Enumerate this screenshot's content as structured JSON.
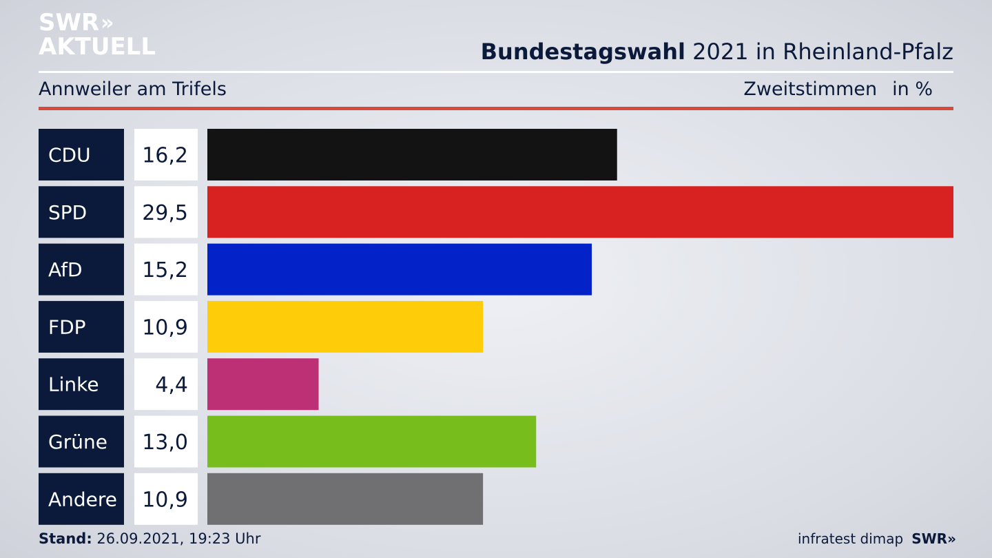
{
  "logo": {
    "line1": "SWR",
    "chevrons": "»",
    "line2": "AKTUELL"
  },
  "header": {
    "title_bold": "Bundestagswahl",
    "title_rest": " 2021 in Rheinland-Pfalz"
  },
  "subheader": {
    "region": "Annweiler am Trifels",
    "vote_type": "Zweitstimmen",
    "unit": "in %"
  },
  "colors": {
    "label_box": "#0b1a3a",
    "value_box": "#ffffff",
    "accent_rule": "#d64a3b"
  },
  "chart_data": {
    "type": "bar",
    "orientation": "horizontal",
    "categories": [
      "CDU",
      "SPD",
      "AfD",
      "FDP",
      "Linke",
      "Grüne",
      "Andere"
    ],
    "values": [
      16.2,
      29.5,
      15.2,
      10.9,
      4.4,
      13.0,
      10.9
    ],
    "value_labels": [
      "16,2",
      "29,5",
      "15,2",
      "10,9",
      "4,4",
      "13,0",
      "10,9"
    ],
    "colors": [
      "#131313",
      "#d82121",
      "#0322c8",
      "#ffcc09",
      "#be3075",
      "#77be1c",
      "#707073"
    ],
    "xlim": [
      0,
      29.5
    ],
    "grid": false,
    "legend": "none"
  },
  "footer": {
    "stand_label": "Stand:",
    "stand_value": " 26.09.2021, 19:23 Uhr",
    "source": "infratest dimap",
    "brand": "SWR",
    "brand_chevrons": "»"
  }
}
